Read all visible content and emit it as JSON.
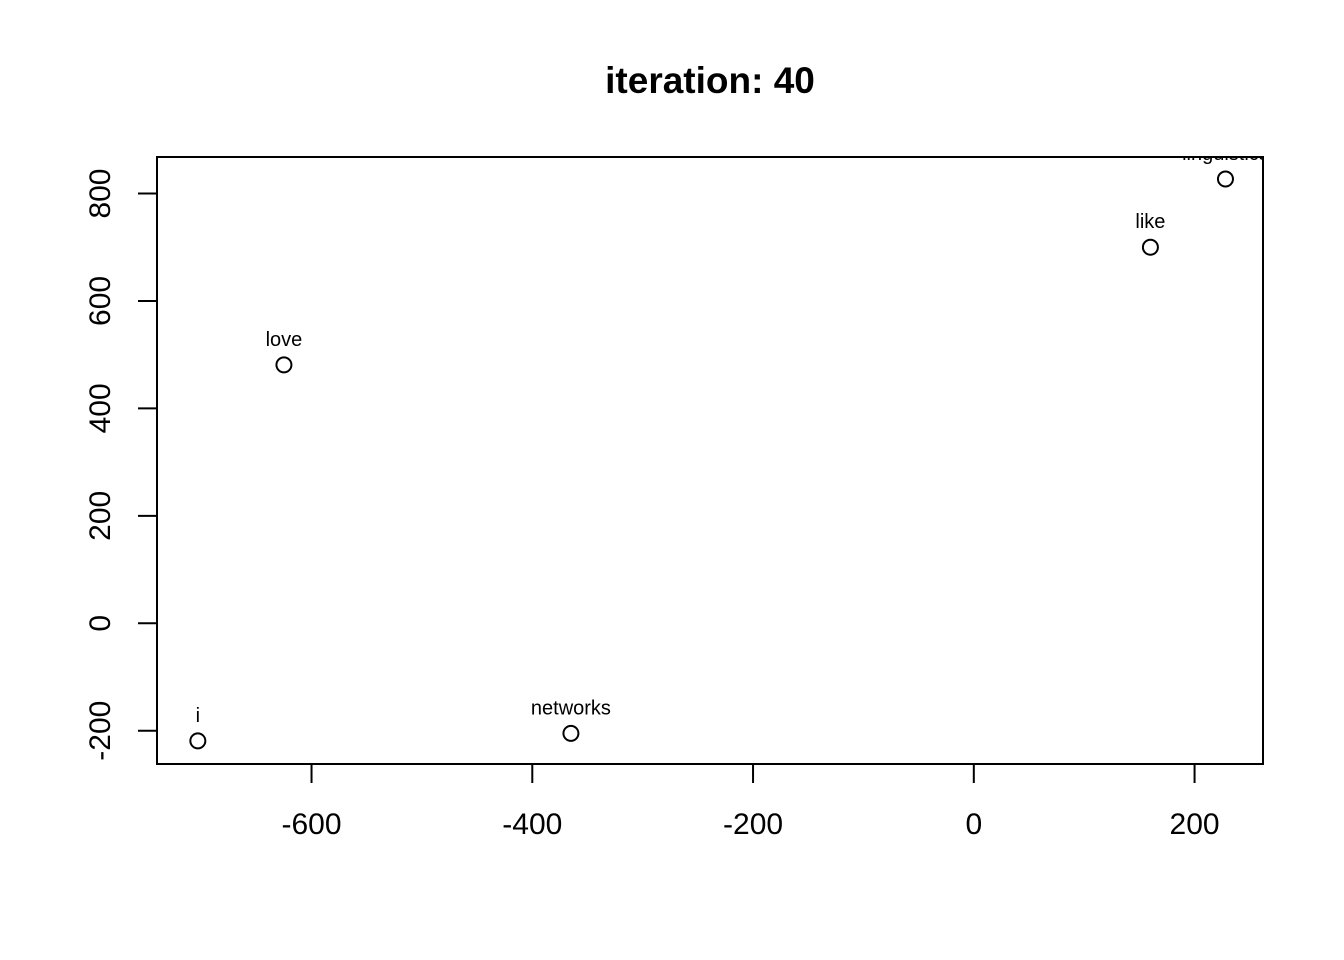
{
  "chart_data": {
    "type": "scatter",
    "title": "iteration: 40",
    "xlabel": "",
    "ylabel": "",
    "xlim": [
      -740,
      262
    ],
    "ylim": [
      -262,
      868
    ],
    "x_ticks": [
      -600,
      -400,
      -200,
      0,
      200
    ],
    "y_ticks": [
      -200,
      0,
      200,
      400,
      600,
      800
    ],
    "grid": false,
    "points": [
      {
        "label": "i",
        "x": -703,
        "y": -219
      },
      {
        "label": "love",
        "x": -625,
        "y": 481
      },
      {
        "label": "networks",
        "x": -365,
        "y": -205
      },
      {
        "label": "like",
        "x": 160,
        "y": 700
      },
      {
        "label": "linguistics",
        "x": 228,
        "y": 827
      }
    ]
  }
}
